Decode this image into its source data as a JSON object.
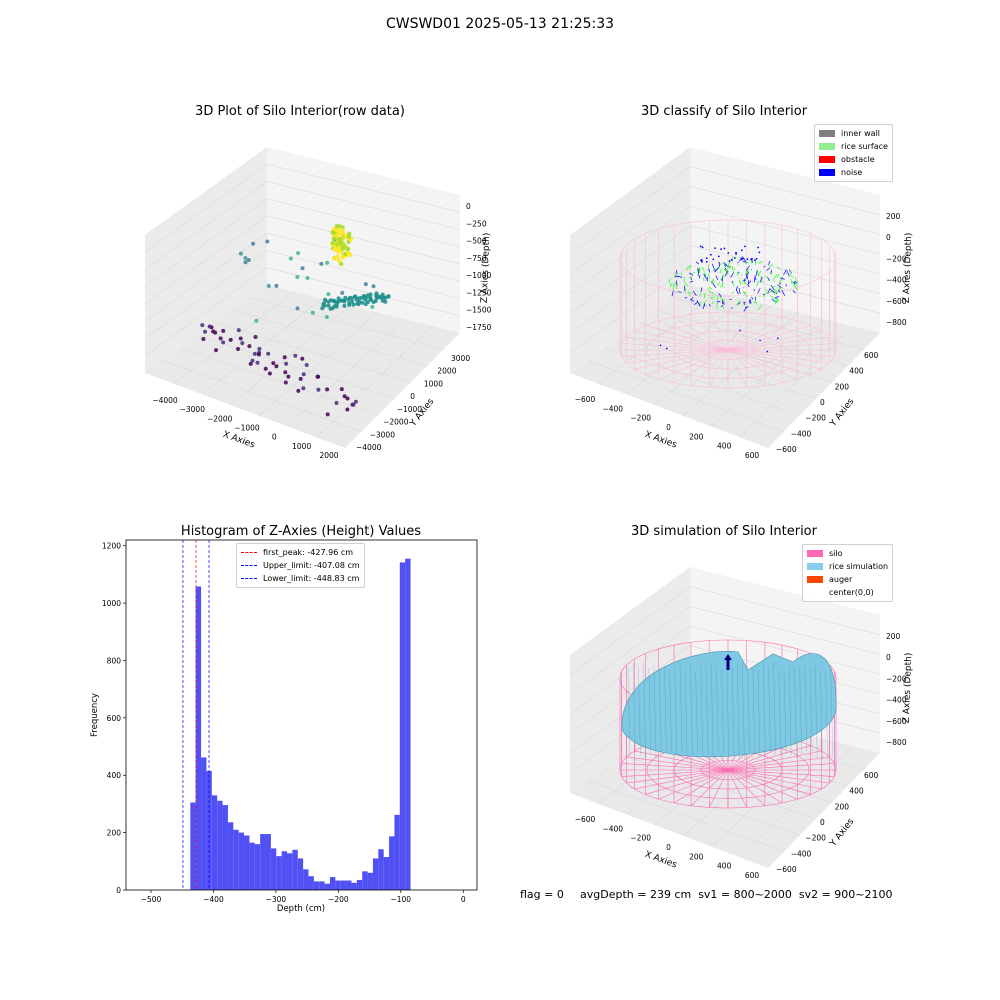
{
  "suptitle": "CWSWD01 2025-05-13 21:25:33",
  "chart_data": [
    {
      "type": "scatter",
      "title": "3D Plot of Silo Interior(row data)",
      "xlabel": "X Axies",
      "ylabel": "Y Axies",
      "zlabel": "Z Axies (Depth)",
      "x_ticks": [
        "−4000",
        "−3000",
        "−2000",
        "−1000",
        "0",
        "1000",
        "2000"
      ],
      "y_ticks": [
        "3000",
        "2000",
        "1000",
        "0",
        "−1000",
        "−2000",
        "−3000",
        "−4000"
      ],
      "z_ticks": [
        "0",
        "−250",
        "−500",
        "−750",
        "−1000",
        "−1250",
        "−1500",
        "−1750"
      ],
      "colormap": "viridis"
    },
    {
      "type": "scatter",
      "title": "3D classify of Silo Interior",
      "xlabel": "X Axies",
      "ylabel": "Y Axies",
      "zlabel": "Z Axies (Depth)",
      "x_ticks": [
        "−600",
        "−400",
        "−200",
        "0",
        "200",
        "400",
        "600"
      ],
      "y_ticks": [
        "600",
        "400",
        "200",
        "0",
        "−200",
        "−400",
        "−600"
      ],
      "z_ticks": [
        "200",
        "0",
        "−200",
        "−400",
        "−600",
        "−800"
      ],
      "legend": [
        {
          "label": "inner wall",
          "color": "#808080"
        },
        {
          "label": "rice surface",
          "color": "#90ee90"
        },
        {
          "label": "obstacle",
          "color": "#ff0000"
        },
        {
          "label": "noise",
          "color": "#0000ff"
        }
      ],
      "legend_position": "top-right"
    },
    {
      "type": "bar",
      "title": "Histogram of Z-Axies (Height) Values",
      "xlabel": "Depth (cm)",
      "ylabel": "Frequency",
      "xlim": [
        -540,
        22
      ],
      "ylim": [
        0,
        1220
      ],
      "x_ticks": [
        -500,
        -400,
        -300,
        -200,
        -100,
        0
      ],
      "x_tick_labels": [
        "−500",
        "−400",
        "−300",
        "−200",
        "−100",
        "0"
      ],
      "y_ticks": [
        0,
        200,
        400,
        600,
        800,
        1000,
        1200
      ],
      "bin_width": 8.6,
      "bin_start": -437,
      "values": [
        305,
        1058,
        462,
        415,
        330,
        311,
        296,
        236,
        210,
        200,
        190,
        165,
        160,
        195,
        195,
        145,
        118,
        135,
        128,
        140,
        110,
        72,
        48,
        30,
        30,
        22,
        45,
        33,
        33,
        33,
        25,
        35,
        65,
        60,
        110,
        142,
        115,
        187,
        262,
        1142,
        1155
      ],
      "color": "#5050f5",
      "vlines": [
        {
          "label": "first_peak: -427.96 cm",
          "x": -427.96,
          "color": "#ff0000"
        },
        {
          "label": "Upper_limit: -407.08 cm",
          "x": -407.08,
          "color": "#0000ff"
        },
        {
          "label": "Lower_limit: -448.83 cm",
          "x": -448.83,
          "color": "#0000ff"
        }
      ],
      "legend_position": "upper-center"
    },
    {
      "type": "area",
      "title": "3D simulation of Silo Interior",
      "xlabel": "X Axies",
      "ylabel": "Y Axies",
      "zlabel": "Z Axies (Depth)",
      "x_ticks": [
        "−600",
        "−400",
        "−200",
        "0",
        "200",
        "400",
        "600"
      ],
      "y_ticks": [
        "600",
        "400",
        "200",
        "0",
        "−200",
        "−400",
        "−600"
      ],
      "z_ticks": [
        "200",
        "0",
        "−200",
        "−400",
        "−600",
        "−800"
      ],
      "legend": [
        {
          "label": "silo",
          "color": "#ff69b4"
        },
        {
          "label": "rice simulation",
          "color": "#87ceeb"
        },
        {
          "label": "auger",
          "color": "#ff4500"
        },
        {
          "label": "center(0,0)",
          "color": "#ffffff"
        }
      ],
      "legend_position": "top-right"
    }
  ],
  "footer": {
    "flag": "flag = 0",
    "stats": "avgDepth = 239 cm  sv1 = 800~2000  sv2 = 900~2100"
  }
}
